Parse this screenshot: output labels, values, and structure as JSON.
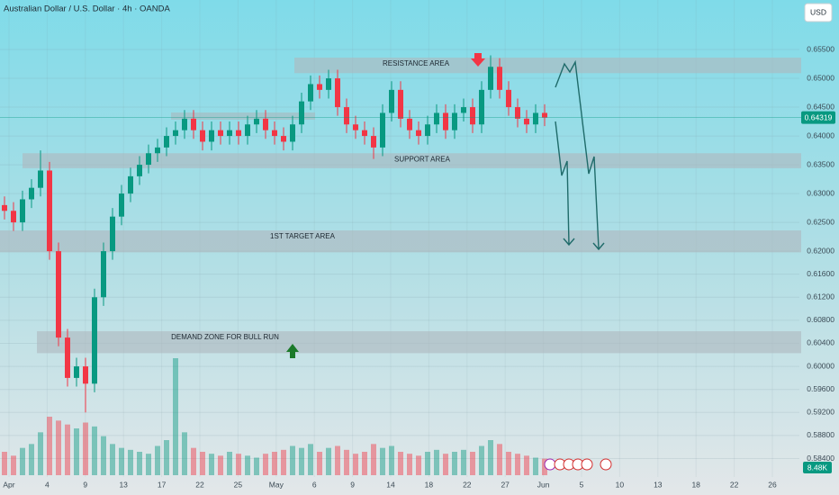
{
  "chart_data": {
    "type": "candlestick",
    "title": "Australian Dollar / U.S. Dollar · 4h · OANDA",
    "currency": "USD",
    "categories": [
      "Apr",
      "4",
      "9",
      "13",
      "17",
      "22",
      "25",
      "May",
      "6",
      "9",
      "14",
      "18",
      "22",
      "27",
      "Jun",
      "5",
      "10",
      "13",
      "18",
      "22",
      "26"
    ],
    "open": [
      0.628,
      0.627,
      0.625,
      0.629,
      0.631,
      0.634,
      0.62,
      0.605,
      0.598,
      0.6,
      0.597,
      0.612,
      0.62,
      0.626,
      0.63,
      0.633,
      0.635,
      0.637,
      0.638,
      0.64,
      0.641,
      0.643,
      0.641,
      0.639,
      0.641,
      0.64,
      0.641,
      0.64,
      0.642,
      0.643,
      0.641,
      0.64,
      0.639,
      0.642,
      0.646,
      0.649,
      0.648,
      0.65,
      0.645,
      0.642,
      0.641,
      0.64,
      0.638,
      0.644,
      0.648,
      0.643,
      0.641,
      0.64,
      0.642,
      0.644,
      0.641,
      0.644,
      0.645,
      0.642,
      0.648,
      0.652,
      0.648,
      0.645,
      0.643,
      0.642,
      0.644
    ],
    "high": [
      0.6295,
      0.6285,
      0.6305,
      0.6325,
      0.6375,
      0.6355,
      0.6215,
      0.6065,
      0.6015,
      0.6015,
      0.6135,
      0.6215,
      0.6275,
      0.6315,
      0.6345,
      0.6365,
      0.6385,
      0.6395,
      0.6415,
      0.6425,
      0.6445,
      0.6445,
      0.6425,
      0.6425,
      0.6425,
      0.6425,
      0.6425,
      0.6435,
      0.6445,
      0.6445,
      0.6425,
      0.6415,
      0.6435,
      0.6475,
      0.6505,
      0.6505,
      0.6515,
      0.6515,
      0.6465,
      0.6435,
      0.6425,
      0.6415,
      0.6455,
      0.6495,
      0.6495,
      0.6445,
      0.6425,
      0.6435,
      0.6455,
      0.6455,
      0.6455,
      0.6465,
      0.6465,
      0.6495,
      0.654,
      0.6535,
      0.6495,
      0.6465,
      0.6445,
      0.6455,
      0.6455
    ],
    "low": [
      0.6255,
      0.6235,
      0.6235,
      0.6275,
      0.6295,
      0.6185,
      0.6035,
      0.5965,
      0.5965,
      0.592,
      0.5955,
      0.6105,
      0.6185,
      0.6245,
      0.6285,
      0.6315,
      0.6335,
      0.6355,
      0.6365,
      0.6385,
      0.6395,
      0.6395,
      0.6375,
      0.6375,
      0.6385,
      0.6385,
      0.6385,
      0.6385,
      0.6405,
      0.6395,
      0.6385,
      0.6375,
      0.6375,
      0.6405,
      0.6445,
      0.6465,
      0.6465,
      0.6435,
      0.6405,
      0.6395,
      0.6385,
      0.636,
      0.6365,
      0.6425,
      0.6415,
      0.6395,
      0.6385,
      0.6385,
      0.6405,
      0.6395,
      0.6395,
      0.6425,
      0.6405,
      0.6405,
      0.6465,
      0.6465,
      0.6435,
      0.6415,
      0.6405,
      0.6405,
      0.6417
    ],
    "close": [
      0.627,
      0.625,
      0.629,
      0.631,
      0.634,
      0.62,
      0.605,
      0.598,
      0.6,
      0.597,
      0.612,
      0.62,
      0.626,
      0.63,
      0.633,
      0.635,
      0.637,
      0.638,
      0.64,
      0.641,
      0.643,
      0.641,
      0.639,
      0.641,
      0.64,
      0.641,
      0.64,
      0.642,
      0.643,
      0.641,
      0.64,
      0.639,
      0.642,
      0.646,
      0.649,
      0.648,
      0.65,
      0.645,
      0.642,
      0.641,
      0.64,
      0.638,
      0.644,
      0.648,
      0.643,
      0.641,
      0.64,
      0.642,
      0.644,
      0.641,
      0.644,
      0.645,
      0.642,
      0.648,
      0.652,
      0.648,
      0.645,
      0.643,
      0.642,
      0.644,
      0.64319
    ],
    "up_color": "#089981",
    "down_color": "#f23645",
    "volume": {
      "values": [
        12000,
        10000,
        14000,
        16000,
        22000,
        30000,
        28000,
        26000,
        24000,
        27000,
        25000,
        20000,
        16000,
        14000,
        13000,
        12000,
        11000,
        15000,
        18000,
        60000,
        22000,
        14000,
        12000,
        11000,
        10000,
        12000,
        11000,
        10000,
        9000,
        11000,
        12000,
        13000,
        15000,
        14000,
        16000,
        12000,
        14000,
        15000,
        13000,
        11000,
        12000,
        16000,
        14000,
        15000,
        12000,
        11000,
        10000,
        12000,
        13000,
        11000,
        12000,
        13000,
        12000,
        15000,
        18000,
        16000,
        12000,
        11000,
        10000,
        9000,
        8480
      ],
      "last_label": "8.48K"
    },
    "ylim": [
      0.5808,
      0.6636
    ],
    "yticks": [
      {
        "value": 0.655,
        "label": "0.65500"
      },
      {
        "value": 0.65,
        "label": "0.65000"
      },
      {
        "value": 0.645,
        "label": "0.64500"
      },
      {
        "value": 0.64,
        "label": "0.64000"
      },
      {
        "value": 0.635,
        "label": "0.63500"
      },
      {
        "value": 0.63,
        "label": "0.63000"
      },
      {
        "value": 0.625,
        "label": "0.62500"
      },
      {
        "value": 0.62,
        "label": "0.62000"
      },
      {
        "value": 0.616,
        "label": "0.61600"
      },
      {
        "value": 0.612,
        "label": "0.61200"
      },
      {
        "value": 0.608,
        "label": "0.60800"
      },
      {
        "value": 0.604,
        "label": "0.60400"
      },
      {
        "value": 0.6,
        "label": "0.60000"
      },
      {
        "value": 0.596,
        "label": "0.59600"
      },
      {
        "value": 0.592,
        "label": "0.59200"
      },
      {
        "value": 0.588,
        "label": "0.58800"
      },
      {
        "value": 0.584,
        "label": "0.58400"
      }
    ],
    "grid": true,
    "zones": [
      {
        "label": "RESISTANCE AREA",
        "range": [
          0.6509,
          0.6536
        ]
      },
      {
        "label": "SUPPORT AREA",
        "range": [
          0.6344,
          0.637
        ]
      },
      {
        "label": "1ST TARGET AREA",
        "range": [
          0.6198,
          0.6236
        ]
      },
      {
        "label": "DEMAND ZONE FOR BULL RUN",
        "range": [
          0.6023,
          0.6061
        ]
      }
    ]
  }
}
